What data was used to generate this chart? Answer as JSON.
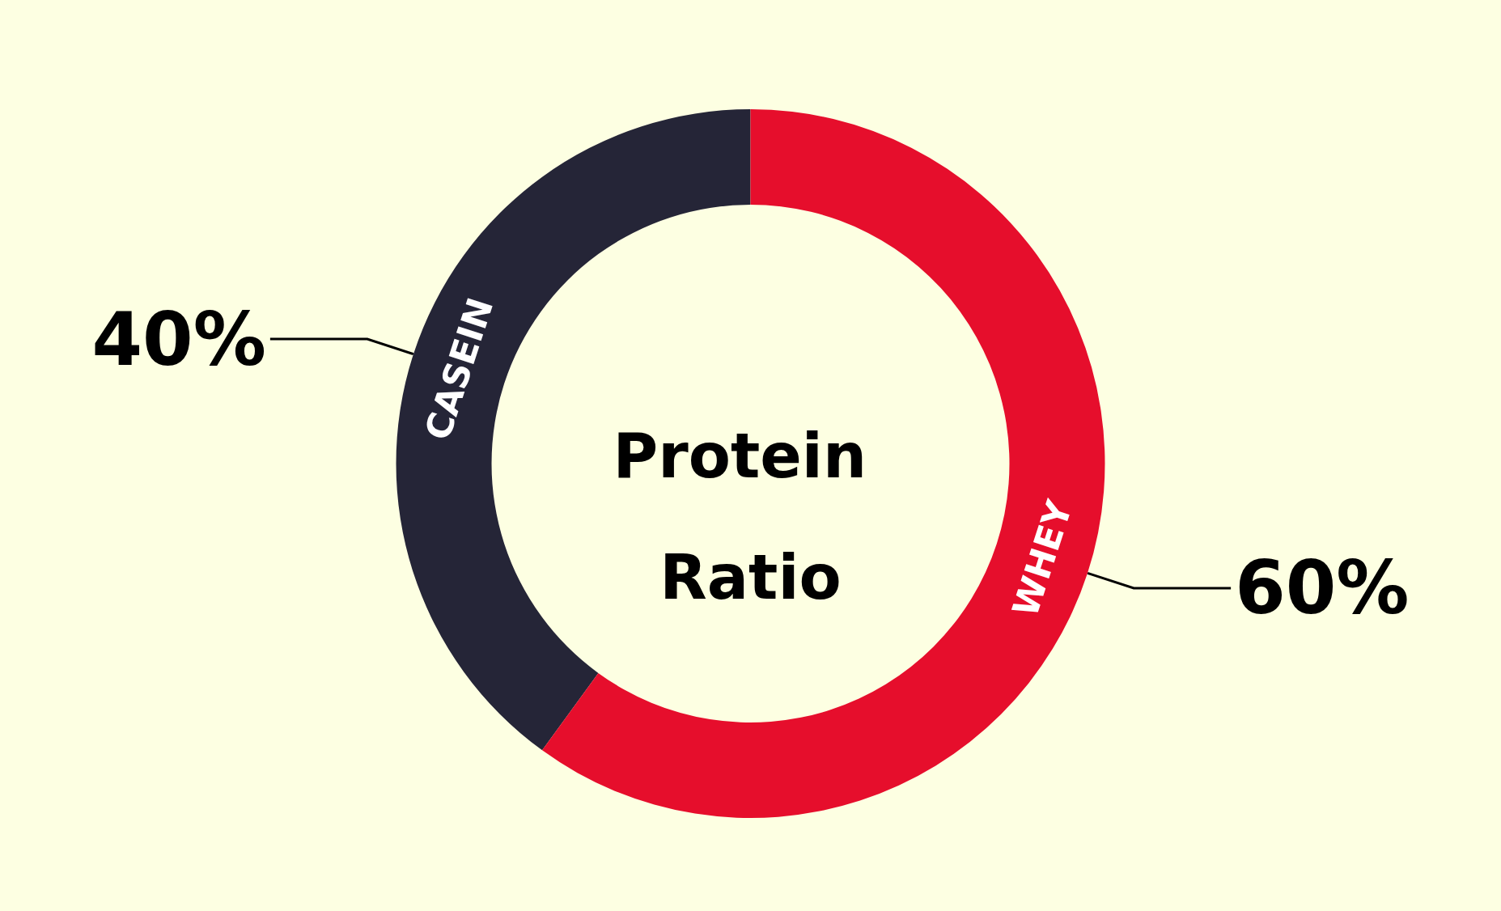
{
  "chart_data": {
    "type": "donut",
    "title": "Protein Ratio",
    "categories": [
      "CASEIN",
      "WHEY"
    ],
    "values": [
      40,
      60
    ],
    "colors": [
      "#252537",
      "#e60e2c"
    ],
    "value_labels": [
      "40%",
      "60%"
    ],
    "legend": false
  }
}
